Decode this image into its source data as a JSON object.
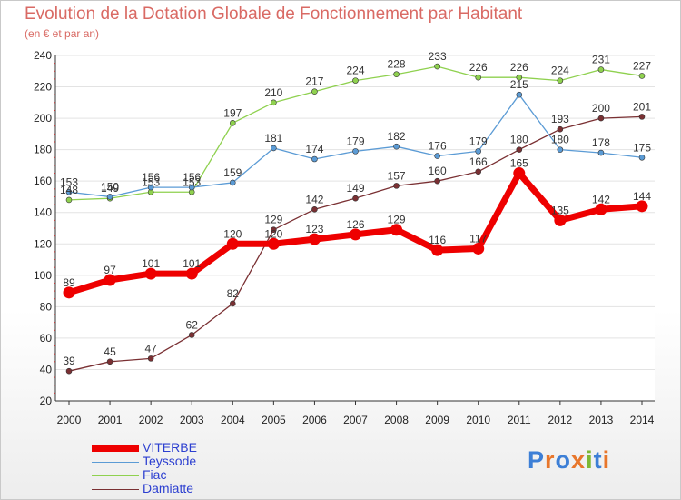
{
  "header": {
    "title": "Evolution de la Dotation Globale de Fonctionnement par Habitant",
    "subtitle": "(en € et par an)"
  },
  "logo": {
    "text": "Proxiti",
    "colors": [
      "#3d7fd6",
      "#e8762b",
      "#3d7fd6",
      "#e8762b",
      "#7db834",
      "#3d7fd6",
      "#e8762b"
    ]
  },
  "chart_data": {
    "type": "line",
    "x": [
      2000,
      2001,
      2002,
      2003,
      2004,
      2005,
      2006,
      2007,
      2008,
      2009,
      2010,
      2011,
      2012,
      2013,
      2014
    ],
    "ylim": [
      20,
      240
    ],
    "yticks": [
      20,
      40,
      60,
      80,
      100,
      120,
      140,
      160,
      180,
      200,
      220,
      240
    ],
    "grid": "horizontal",
    "legend_position": "bottom-left",
    "series": [
      {
        "name": "VITERBE",
        "color": "#ee0000",
        "values": [
          89,
          97,
          101,
          101,
          120,
          120,
          123,
          126,
          129,
          116,
          117,
          165,
          135,
          142,
          144
        ],
        "labels": [
          "89",
          "97",
          "101",
          "101",
          "120",
          "120",
          "123",
          "126",
          "129",
          "116",
          "117",
          "165",
          "135",
          "142",
          "144"
        ]
      },
      {
        "name": "Teyssode",
        "color": "#5b9bd5",
        "values": [
          153,
          150,
          156,
          156,
          159,
          181,
          174,
          179,
          182,
          176,
          179,
          215,
          180,
          178,
          175
        ],
        "labels": [
          "153",
          "150",
          "156",
          "156",
          "159",
          "181",
          "174",
          "179",
          "182",
          "176",
          "179",
          "215",
          "180",
          "178",
          "175"
        ]
      },
      {
        "name": "Fiac",
        "color": "#8fd14f",
        "values": [
          148,
          149,
          153,
          153,
          197,
          210,
          217,
          224,
          228,
          233,
          226,
          226,
          224,
          231,
          227
        ],
        "labels": [
          "148",
          "149",
          "153",
          "153",
          "197",
          "210",
          "217",
          "224",
          "228",
          "233",
          "226",
          "226",
          "224",
          "231",
          "227"
        ]
      },
      {
        "name": "Damiatte",
        "color": "#7a3033",
        "values": [
          39,
          45,
          47,
          62,
          82,
          129,
          142,
          149,
          157,
          160,
          166,
          180,
          193,
          200,
          201
        ],
        "labels": [
          "39",
          "45",
          "47",
          "62",
          "82",
          "129",
          "142",
          "149",
          "157",
          "160",
          "166",
          "180",
          "193",
          "200",
          "201"
        ]
      }
    ]
  }
}
